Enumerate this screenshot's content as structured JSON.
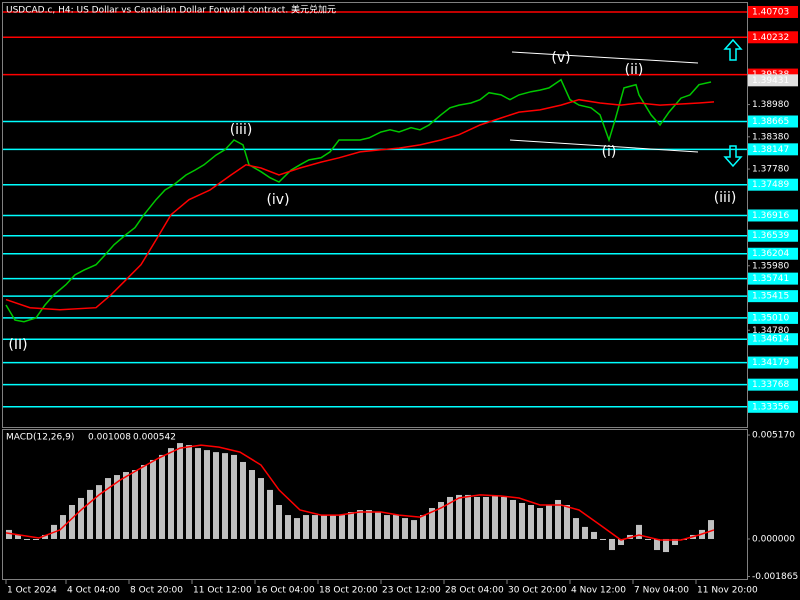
{
  "chart_data": [
    {
      "type": "line",
      "title": "USDCAD.c, H4:  US Dollar vs Canadian Dollar Forward contract. 美元兑加元",
      "ylim": [
        1.3298,
        1.4087
      ],
      "yticks": [
        {
          "value": 1.3898,
          "label": "1.38980"
        },
        {
          "value": 1.3838,
          "label": "1.38380"
        },
        {
          "value": 1.3778,
          "label": "1.37780"
        },
        {
          "value": 1.3598,
          "label": "1.35980"
        },
        {
          "value": 1.3478,
          "label": "1.34780"
        }
      ],
      "levels": [
        {
          "value": 1.40703,
          "color": "#ff0000"
        },
        {
          "value": 1.40232,
          "color": "#ff0000"
        },
        {
          "value": 1.39538,
          "color": "#ff0000"
        },
        {
          "value": 1.38665,
          "color": "#00ffff"
        },
        {
          "value": 1.38147,
          "color": "#00ffff"
        },
        {
          "value": 1.37489,
          "color": "#00ffff"
        },
        {
          "value": 1.36916,
          "color": "#00ffff"
        },
        {
          "value": 1.36539,
          "color": "#00ffff"
        },
        {
          "value": 1.36204,
          "color": "#00ffff"
        },
        {
          "value": 1.35741,
          "color": "#00ffff"
        },
        {
          "value": 1.35415,
          "color": "#00ffff"
        },
        {
          "value": 1.3501,
          "label": "1.35010",
          "color": "#00ffff"
        },
        {
          "value": 1.34614,
          "color": "#00ffff"
        },
        {
          "value": 1.34179,
          "color": "#00ffff"
        },
        {
          "value": 1.33768,
          "color": "#00ffff"
        },
        {
          "value": 1.33356,
          "color": "#00ffff"
        }
      ],
      "last_price": 1.39431,
      "annotations": [
        "(v)",
        "(ii)",
        "(i)",
        "(iii)",
        "(iv)",
        "(iii)",
        "(II)"
      ],
      "series": [
        {
          "color": "#00c800",
          "x": [
            1,
            4,
            7,
            11,
            14,
            17,
            21,
            24,
            27,
            31,
            34,
            37,
            41,
            44,
            47,
            51,
            54,
            57,
            61,
            64,
            67,
            71,
            74,
            77,
            80,
            82,
            86,
            89,
            92,
            96,
            99,
            102,
            106,
            109,
            112,
            116,
            119,
            122,
            126,
            129,
            132,
            136,
            139,
            142,
            146,
            149,
            152,
            156,
            159,
            162,
            166,
            169,
            172,
            176,
            179,
            182,
            186,
            189,
            192,
            196,
            199,
            202,
            204,
            207,
            211,
            212,
            216,
            219,
            222,
            226,
            229,
            232,
            236
          ],
          "values": [
            1.3525,
            1.3497,
            1.3494,
            1.3501,
            1.3525,
            1.3544,
            1.3563,
            1.3581,
            1.359,
            1.36,
            1.3618,
            1.3637,
            1.3656,
            1.3669,
            1.3693,
            1.3721,
            1.3739,
            1.3749,
            1.3767,
            1.3776,
            1.3786,
            1.3804,
            1.3814,
            1.3832,
            1.3823,
            1.3786,
            1.3773,
            1.3762,
            1.3754,
            1.3776,
            1.3786,
            1.3795,
            1.3799,
            1.381,
            1.3832,
            1.3832,
            1.3832,
            1.3836,
            1.3847,
            1.3851,
            1.3847,
            1.3855,
            1.3851,
            1.386,
            1.3879,
            1.3892,
            1.3897,
            1.3901,
            1.3907,
            1.392,
            1.3916,
            1.3907,
            1.3916,
            1.3922,
            1.3925,
            1.3929,
            1.3944,
            1.3907,
            1.3897,
            1.3892,
            1.3879,
            1.3832,
            1.3869,
            1.3929,
            1.3935,
            1.3916,
            1.3879,
            1.386,
            1.3884,
            1.391,
            1.3916,
            1.3935,
            1.394
          ]
        },
        {
          "color": "#ff0000",
          "x": [
            1,
            9,
            19,
            31,
            36,
            41,
            46,
            51,
            56,
            62,
            69,
            76,
            81,
            86,
            92,
            99,
            106,
            112,
            119,
            126,
            132,
            139,
            146,
            152,
            159,
            166,
            172,
            179,
            186,
            192,
            199,
            206,
            212,
            219,
            226,
            232,
            237
          ],
          "values": [
            1.3535,
            1.352,
            1.3516,
            1.352,
            1.3544,
            1.3572,
            1.36,
            1.3646,
            1.3693,
            1.3721,
            1.3739,
            1.3767,
            1.3786,
            1.378,
            1.3767,
            1.378,
            1.3791,
            1.3799,
            1.381,
            1.3814,
            1.3817,
            1.3823,
            1.3832,
            1.3842,
            1.386,
            1.3873,
            1.3884,
            1.3888,
            1.3897,
            1.3907,
            1.3901,
            1.3897,
            1.3901,
            1.3897,
            1.3899,
            1.3901,
            1.3903
          ]
        }
      ]
    },
    {
      "type": "bar",
      "title": "MACD(12,26,9)",
      "readings": [
        0.001008,
        0.000542
      ],
      "ylim": [
        -0.00204,
        0.00542
      ],
      "yticks": [
        {
          "value": 0.00517,
          "label": "0.005170"
        },
        {
          "value": 0,
          "label": "0.000000"
        },
        -0.001865
      ],
      "xlim": [
        0,
        248
      ],
      "xticks": [
        {
          "value": 1,
          "label": "1 Oct 2024"
        },
        {
          "value": 21,
          "label": "4 Oct 04:00"
        },
        {
          "value": 42,
          "label": "8 Oct 20:00"
        },
        {
          "value": 63,
          "label": "11 Oct 12:00"
        },
        {
          "value": 84,
          "label": "16 Oct 04:00"
        },
        {
          "value": 105,
          "label": "18 Oct 20:00"
        },
        {
          "value": 126,
          "label": "23 Oct 12:00"
        },
        {
          "value": 147,
          "label": "28 Oct 04:00"
        },
        {
          "value": 168,
          "label": "30 Oct 20:00"
        },
        {
          "value": 189,
          "label": "4 Nov 12:00"
        },
        {
          "value": 210,
          "label": "7 Nov 04:00"
        },
        {
          "value": 231,
          "label": "11 Nov 20:00"
        }
      ],
      "series": [
        {
          "color": "#c0c0c0",
          "x": [
            2,
            5,
            8,
            11,
            14,
            17,
            20,
            23,
            26,
            29,
            32,
            35,
            38,
            41,
            44,
            47,
            50,
            53,
            56,
            59,
            62,
            65,
            68,
            71,
            74,
            77,
            80,
            83,
            86,
            89,
            92,
            95,
            98,
            101,
            104,
            107,
            110,
            113,
            116,
            119,
            122,
            125,
            128,
            131,
            134,
            137,
            140,
            143,
            146,
            149,
            152,
            155,
            158,
            161,
            164,
            167,
            170,
            173,
            176,
            179,
            182,
            185,
            188,
            191,
            194,
            197,
            200,
            203,
            206,
            209,
            212,
            215,
            218,
            221,
            224,
            227,
            230,
            233,
            236
          ],
          "values": [
            0.00045,
            0.0002,
            -5e-05,
            -5e-05,
            0.0002,
            0.0007,
            0.00119,
            0.00169,
            0.00204,
            0.00244,
            0.00268,
            0.00303,
            0.00318,
            0.00333,
            0.00343,
            0.00368,
            0.00393,
            0.00418,
            0.00452,
            0.00477,
            0.00467,
            0.00452,
            0.00442,
            0.00432,
            0.00427,
            0.00418,
            0.00383,
            0.00343,
            0.00303,
            0.00244,
            0.00169,
            0.00119,
            0.00104,
            0.00119,
            0.00119,
            0.00119,
            0.00119,
            0.00119,
            0.00134,
            0.00144,
            0.00144,
            0.00134,
            0.00119,
            0.00119,
            0.00104,
            0.00094,
            0.00119,
            0.00154,
            0.00184,
            0.00209,
            0.00219,
            0.00219,
            0.00209,
            0.00209,
            0.00214,
            0.00209,
            0.00194,
            0.00179,
            0.00169,
            0.00154,
            0.00169,
            0.00194,
            0.00169,
            0.00104,
            0.0006,
            0.00035,
            -5e-05,
            -0.00055,
            -0.0003,
            0.0002,
            0.0007,
            -5e-05,
            -0.00055,
            -0.00065,
            -0.0003,
            -5e-05,
            0.0002,
            0.00045,
            0.00094
          ]
        },
        {
          "type": "line",
          "color": "#ff0000",
          "x": [
            1,
            12,
            19,
            26,
            32,
            39,
            46,
            52,
            59,
            66,
            72,
            79,
            86,
            92,
            99,
            106,
            112,
            119,
            126,
            132,
            139,
            146,
            152,
            159,
            166,
            172,
            179,
            186,
            192,
            199,
            206,
            212,
            219,
            226,
            232,
            237
          ],
          "values": [
            0.0003,
            5e-05,
            0.00045,
            0.00144,
            0.00219,
            0.00293,
            0.00353,
            0.00403,
            0.00452,
            0.00467,
            0.00457,
            0.00432,
            0.00368,
            0.00244,
            0.00144,
            0.00119,
            0.00119,
            0.00134,
            0.00134,
            0.00119,
            0.00109,
            0.00154,
            0.00204,
            0.00219,
            0.00214,
            0.00204,
            0.00169,
            0.00169,
            0.00144,
            0.0007,
            -5e-05,
            0.0002,
            -5e-05,
            -5e-05,
            0.0002,
            0.00045
          ]
        }
      ]
    }
  ]
}
